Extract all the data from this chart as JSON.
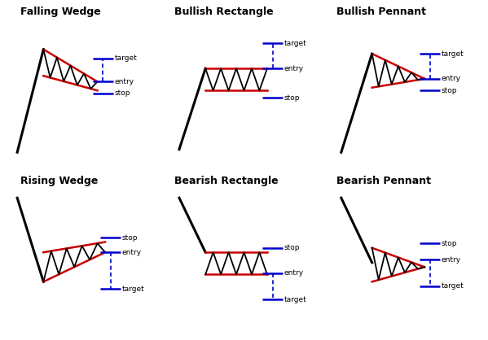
{
  "bg_color": "#ffffff",
  "title_fontsize": 9,
  "titles": [
    "Falling Wedge",
    "Bullish Rectangle",
    "Bullish Pennant",
    "Rising Wedge",
    "Bearish Rectangle",
    "Bearish Pennant"
  ],
  "label_fontsize": 6.5,
  "red": "#cc0000",
  "blue": "#0000cc",
  "black": "#000000",
  "lw_pole": 2.2,
  "lw_trend": 1.8,
  "lw_zz": 1.3,
  "lw_hline": 1.8
}
